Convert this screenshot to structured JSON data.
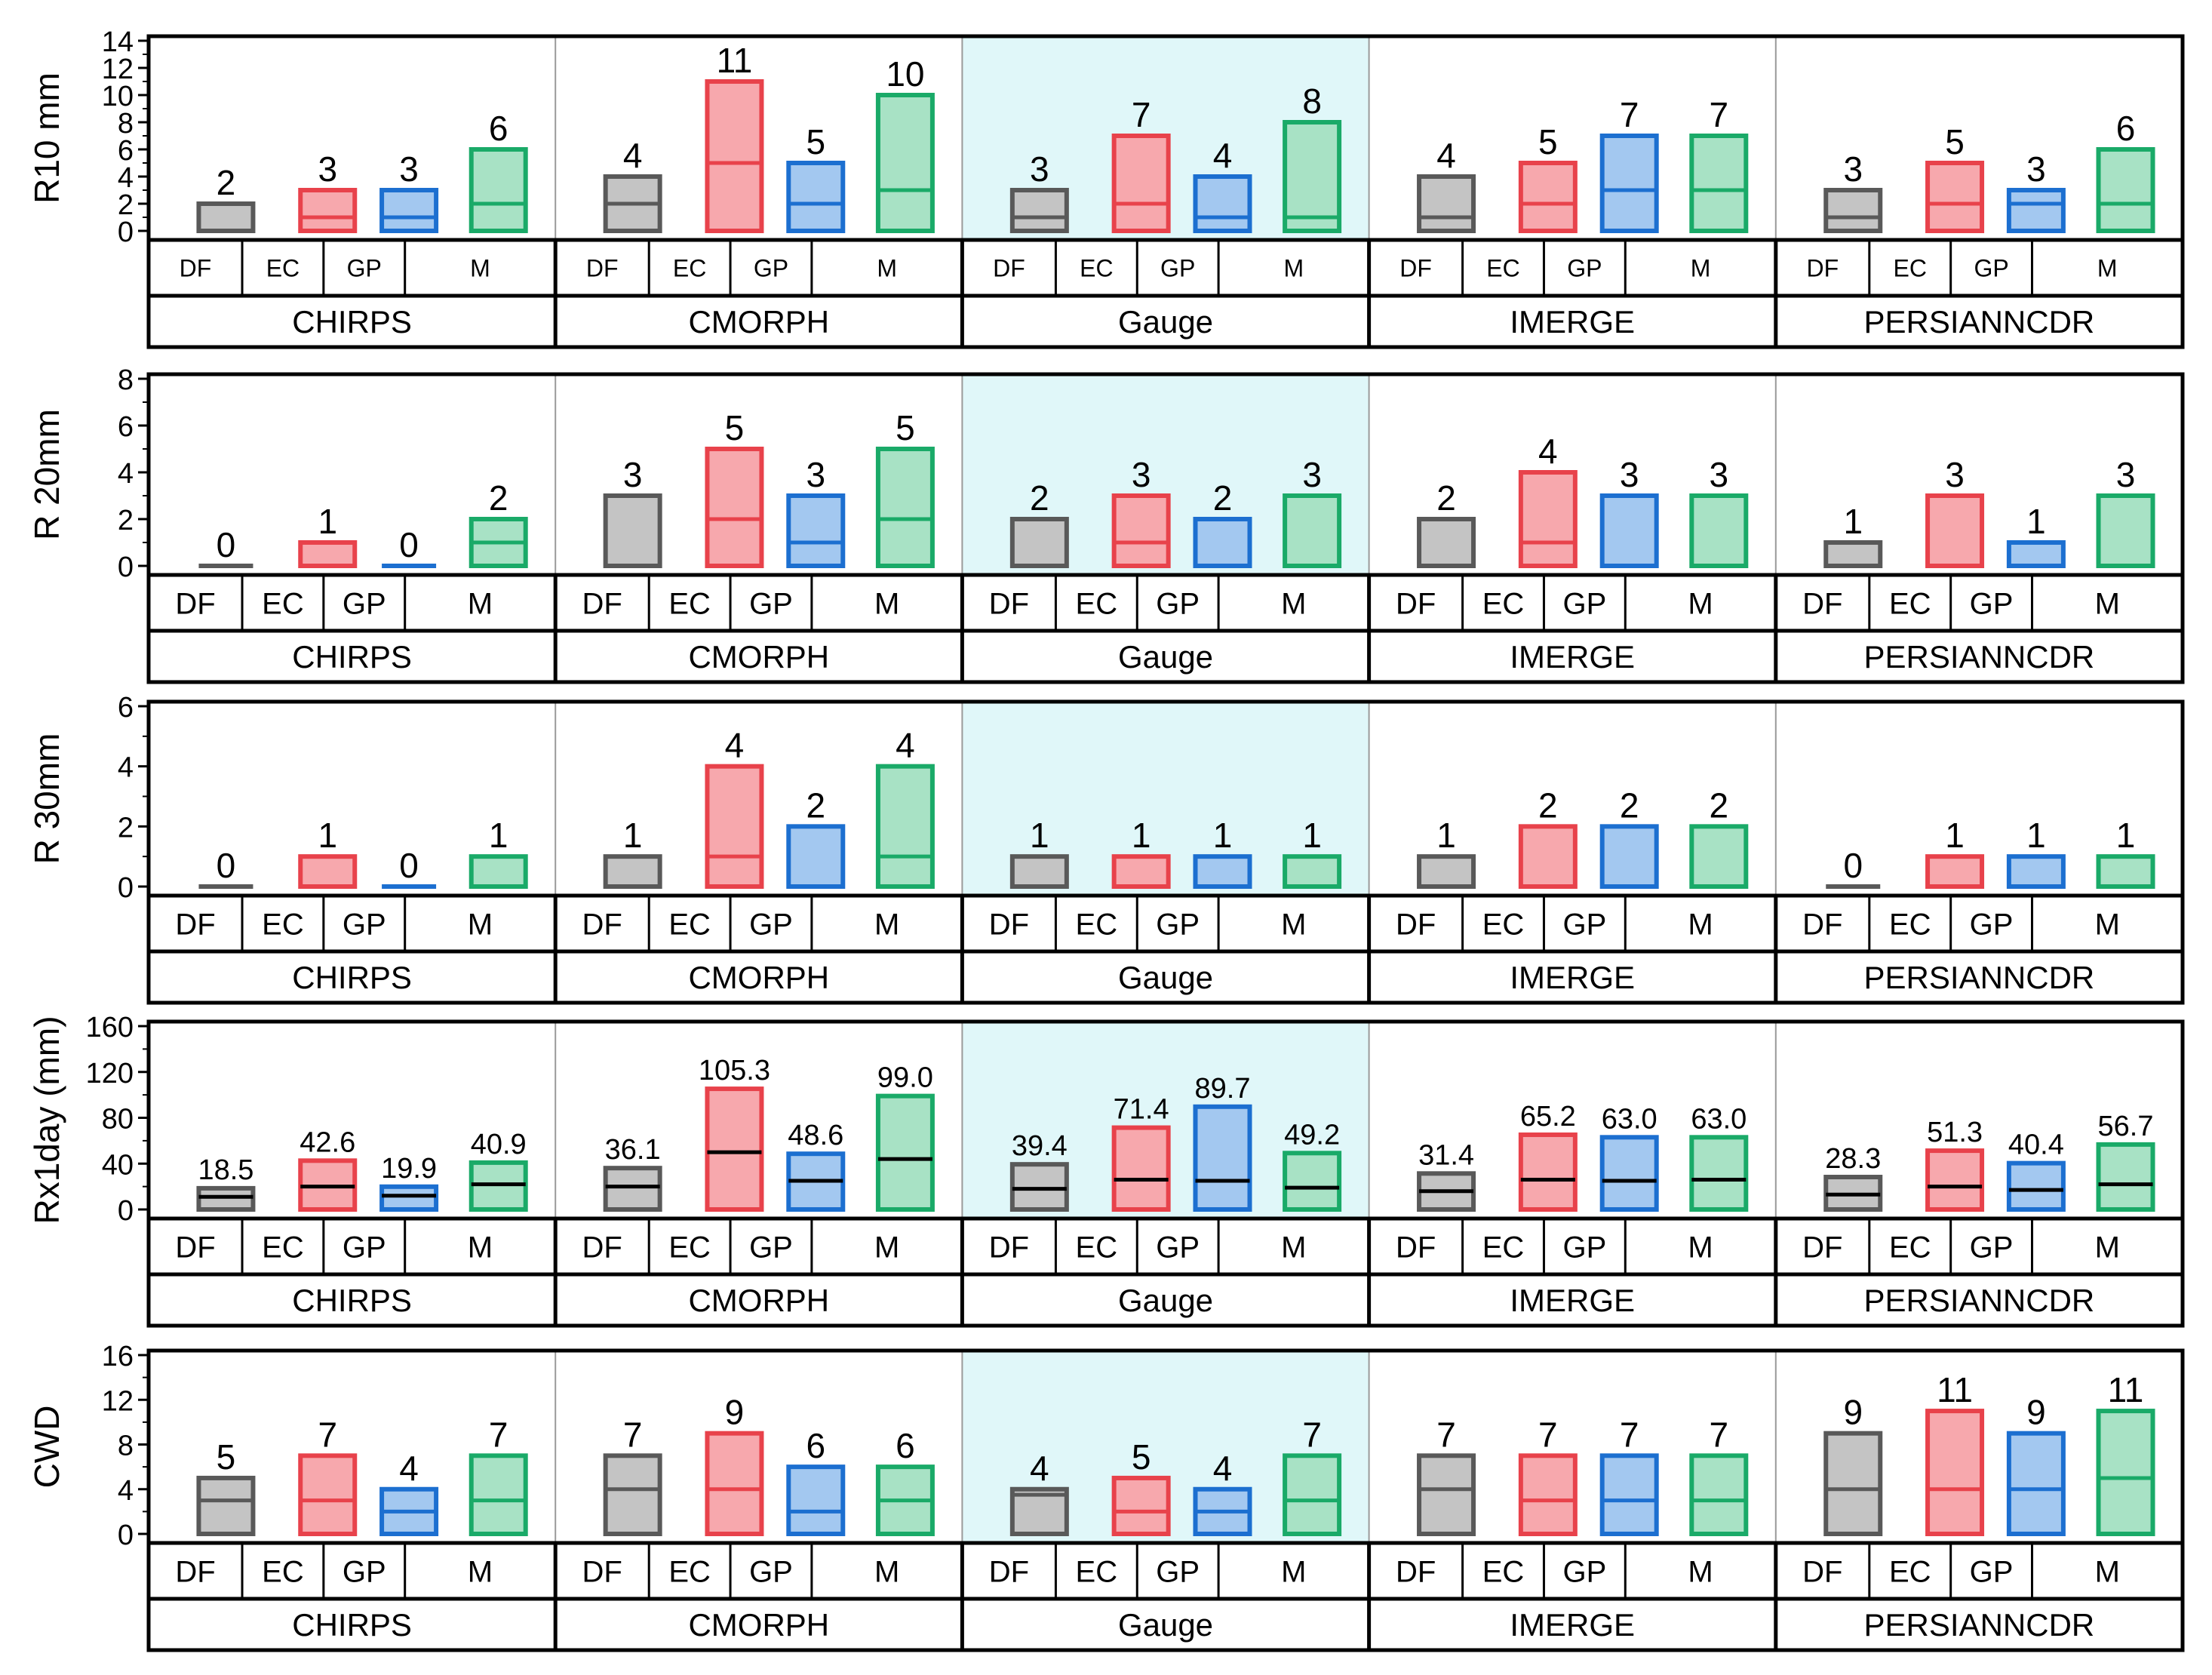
{
  "colors": {
    "DF": {
      "fill": "#c4c4c4",
      "stroke": "#595959"
    },
    "EC": {
      "fill": "#f7a8ad",
      "stroke": "#e8424b"
    },
    "GP": {
      "fill": "#a3c8f0",
      "stroke": "#1c6fd0"
    },
    "M": {
      "fill": "#a8e2c5",
      "stroke": "#1aaa68"
    },
    "gauge_background": "#e0f7f9"
  },
  "chart_data": {
    "type": "bar",
    "chart_kind": "floating bar (range box with median line)",
    "products": [
      "CHIRPS",
      "CMORPH",
      "Gauge",
      "IMERGE",
      "PERSIANNCDR"
    ],
    "methods": [
      "DF",
      "EC",
      "GP",
      "M"
    ],
    "grid": false,
    "legend": "none",
    "panels": [
      {
        "ylabel": "R10 mm",
        "ylim": [
          0,
          14
        ],
        "yticks": [
          "0",
          "2",
          "4",
          "6",
          "8",
          "10",
          "12",
          "14"
        ],
        "groups": [
          {
            "product": "CHIRPS",
            "bars": [
              {
                "method": "DF",
                "label": "2",
                "max": 2,
                "median": 2
              },
              {
                "method": "EC",
                "label": "3",
                "max": 3,
                "median": 1
              },
              {
                "method": "GP",
                "label": "3",
                "max": 3,
                "median": 1
              },
              {
                "method": "M",
                "label": "6",
                "max": 6,
                "median": 2
              }
            ]
          },
          {
            "product": "CMORPH",
            "bars": [
              {
                "method": "DF",
                "label": "4",
                "max": 4,
                "median": 2
              },
              {
                "method": "EC",
                "label": "11",
                "max": 11,
                "median": 5
              },
              {
                "method": "GP",
                "label": "5",
                "max": 5,
                "median": 2
              },
              {
                "method": "M",
                "label": "10",
                "max": 10,
                "median": 3
              }
            ]
          },
          {
            "product": "Gauge",
            "bars": [
              {
                "method": "DF",
                "label": "3",
                "max": 3,
                "median": 1
              },
              {
                "method": "EC",
                "label": "7",
                "max": 7,
                "median": 2
              },
              {
                "method": "GP",
                "label": "4",
                "max": 4,
                "median": 1
              },
              {
                "method": "M",
                "label": "8",
                "max": 8,
                "median": 1
              }
            ]
          },
          {
            "product": "IMERGE",
            "bars": [
              {
                "method": "DF",
                "label": "4",
                "max": 4,
                "median": 1
              },
              {
                "method": "EC",
                "label": "5",
                "max": 5,
                "median": 2
              },
              {
                "method": "GP",
                "label": "7",
                "max": 7,
                "median": 3
              },
              {
                "method": "M",
                "label": "7",
                "max": 7,
                "median": 3
              }
            ]
          },
          {
            "product": "PERSIANNCDR",
            "bars": [
              {
                "method": "DF",
                "label": "3",
                "max": 3,
                "median": 1
              },
              {
                "method": "EC",
                "label": "5",
                "max": 5,
                "median": 2
              },
              {
                "method": "GP",
                "label": "3",
                "max": 3,
                "median": 2
              },
              {
                "method": "M",
                "label": "6",
                "max": 6,
                "median": 2
              }
            ]
          }
        ]
      },
      {
        "ylabel": "R 20mm",
        "ylim": [
          0,
          8
        ],
        "yticks": [
          "0",
          "2",
          "4",
          "6",
          "8"
        ],
        "groups": [
          {
            "product": "CHIRPS",
            "bars": [
              {
                "method": "DF",
                "label": "0",
                "max": 0,
                "median": 0
              },
              {
                "method": "EC",
                "label": "1",
                "max": 1,
                "median": 1
              },
              {
                "method": "GP",
                "label": "0",
                "max": 0,
                "median": 0
              },
              {
                "method": "M",
                "label": "2",
                "max": 2,
                "median": 1
              }
            ]
          },
          {
            "product": "CMORPH",
            "bars": [
              {
                "method": "DF",
                "label": "3",
                "max": 3,
                "median": 3
              },
              {
                "method": "EC",
                "label": "5",
                "max": 5,
                "median": 2
              },
              {
                "method": "GP",
                "label": "3",
                "max": 3,
                "median": 1
              },
              {
                "method": "M",
                "label": "5",
                "max": 5,
                "median": 2
              }
            ]
          },
          {
            "product": "Gauge",
            "bars": [
              {
                "method": "DF",
                "label": "2",
                "max": 2,
                "median": 2
              },
              {
                "method": "EC",
                "label": "3",
                "max": 3,
                "median": 1
              },
              {
                "method": "GP",
                "label": "2",
                "max": 2,
                "median": 2
              },
              {
                "method": "M",
                "label": "3",
                "max": 3,
                "median": 3
              }
            ]
          },
          {
            "product": "IMERGE",
            "bars": [
              {
                "method": "DF",
                "label": "2",
                "max": 2,
                "median": 2
              },
              {
                "method": "EC",
                "label": "4",
                "max": 4,
                "median": 1
              },
              {
                "method": "GP",
                "label": "3",
                "max": 3,
                "median": 3
              },
              {
                "method": "M",
                "label": "3",
                "max": 3,
                "median": 3
              }
            ]
          },
          {
            "product": "PERSIANNCDR",
            "bars": [
              {
                "method": "DF",
                "label": "1",
                "max": 1,
                "median": 1
              },
              {
                "method": "EC",
                "label": "3",
                "max": 3,
                "median": 3
              },
              {
                "method": "GP",
                "label": "1",
                "max": 1,
                "median": 1
              },
              {
                "method": "M",
                "label": "3",
                "max": 3,
                "median": 3
              }
            ]
          }
        ]
      },
      {
        "ylabel": "R 30mm",
        "ylim": [
          0,
          6
        ],
        "yticks": [
          "0",
          "2",
          "4",
          "6"
        ],
        "groups": [
          {
            "product": "CHIRPS",
            "bars": [
              {
                "method": "DF",
                "label": "0",
                "max": 0,
                "median": 0
              },
              {
                "method": "EC",
                "label": "1",
                "max": 1,
                "median": 1
              },
              {
                "method": "GP",
                "label": "0",
                "max": 0,
                "median": 0
              },
              {
                "method": "M",
                "label": "1",
                "max": 1,
                "median": 1
              }
            ]
          },
          {
            "product": "CMORPH",
            "bars": [
              {
                "method": "DF",
                "label": "1",
                "max": 1,
                "median": 1
              },
              {
                "method": "EC",
                "label": "4",
                "max": 4,
                "median": 1
              },
              {
                "method": "GP",
                "label": "2",
                "max": 2,
                "median": 2
              },
              {
                "method": "M",
                "label": "4",
                "max": 4,
                "median": 1
              }
            ]
          },
          {
            "product": "Gauge",
            "bars": [
              {
                "method": "DF",
                "label": "1",
                "max": 1,
                "median": 1
              },
              {
                "method": "EC",
                "label": "1",
                "max": 1,
                "median": 1
              },
              {
                "method": "GP",
                "label": "1",
                "max": 1,
                "median": 1
              },
              {
                "method": "M",
                "label": "1",
                "max": 1,
                "median": 1
              }
            ]
          },
          {
            "product": "IMERGE",
            "bars": [
              {
                "method": "DF",
                "label": "1",
                "max": 1,
                "median": 1
              },
              {
                "method": "EC",
                "label": "2",
                "max": 2,
                "median": 2
              },
              {
                "method": "GP",
                "label": "2",
                "max": 2,
                "median": 2
              },
              {
                "method": "M",
                "label": "2",
                "max": 2,
                "median": 2
              }
            ]
          },
          {
            "product": "PERSIANNCDR",
            "bars": [
              {
                "method": "DF",
                "label": "0",
                "max": 0,
                "median": 0
              },
              {
                "method": "EC",
                "label": "1",
                "max": 1,
                "median": 1
              },
              {
                "method": "GP",
                "label": "1",
                "max": 1,
                "median": 1
              },
              {
                "method": "M",
                "label": "1",
                "max": 1,
                "median": 1
              }
            ]
          }
        ]
      },
      {
        "ylabel": "Rx1day (mm)",
        "ylim": [
          0,
          160
        ],
        "yticks": [
          "0",
          "40",
          "80",
          "120",
          "160"
        ],
        "groups": [
          {
            "product": "CHIRPS",
            "bars": [
              {
                "method": "DF",
                "label": "18.5",
                "max": 18.5,
                "median": 11
              },
              {
                "method": "EC",
                "label": "42.6",
                "max": 42.6,
                "median": 20
              },
              {
                "method": "GP",
                "label": "19.9",
                "max": 19.9,
                "median": 12
              },
              {
                "method": "M",
                "label": "40.9",
                "max": 40.9,
                "median": 22
              }
            ]
          },
          {
            "product": "CMORPH",
            "bars": [
              {
                "method": "DF",
                "label": "36.1",
                "max": 36.1,
                "median": 20
              },
              {
                "method": "EC",
                "label": "105.3",
                "max": 105.3,
                "median": 50
              },
              {
                "method": "GP",
                "label": "48.6",
                "max": 48.6,
                "median": 25
              },
              {
                "method": "M",
                "label": "99.0",
                "max": 99.0,
                "median": 44
              }
            ]
          },
          {
            "product": "Gauge",
            "bars": [
              {
                "method": "DF",
                "label": "39.4",
                "max": 39.4,
                "median": 18
              },
              {
                "method": "EC",
                "label": "71.4",
                "max": 71.4,
                "median": 26
              },
              {
                "method": "GP",
                "label": "89.7",
                "max": 89.7,
                "median": 25
              },
              {
                "method": "M",
                "label": "49.2",
                "max": 49.2,
                "median": 19
              }
            ]
          },
          {
            "product": "IMERGE",
            "bars": [
              {
                "method": "DF",
                "label": "31.4",
                "max": 31.4,
                "median": 16
              },
              {
                "method": "EC",
                "label": "65.2",
                "max": 65.2,
                "median": 26
              },
              {
                "method": "GP",
                "label": "63.0",
                "max": 63.0,
                "median": 25
              },
              {
                "method": "M",
                "label": "63.0",
                "max": 63.0,
                "median": 26
              }
            ]
          },
          {
            "product": "PERSIANNCDR",
            "bars": [
              {
                "method": "DF",
                "label": "28.3",
                "max": 28.3,
                "median": 13
              },
              {
                "method": "EC",
                "label": "51.3",
                "max": 51.3,
                "median": 20
              },
              {
                "method": "GP",
                "label": "40.4",
                "max": 40.4,
                "median": 17
              },
              {
                "method": "M",
                "label": "56.7",
                "max": 56.7,
                "median": 22
              }
            ]
          }
        ]
      },
      {
        "ylabel": "CWD",
        "ylim": [
          0,
          16
        ],
        "yticks": [
          "0",
          "4",
          "8",
          "12",
          "16"
        ],
        "groups": [
          {
            "product": "CHIRPS",
            "bars": [
              {
                "method": "DF",
                "label": "5",
                "max": 5,
                "median": 3
              },
              {
                "method": "EC",
                "label": "7",
                "max": 7,
                "median": 3
              },
              {
                "method": "GP",
                "label": "4",
                "max": 4,
                "median": 2
              },
              {
                "method": "M",
                "label": "7",
                "max": 7,
                "median": 3
              }
            ]
          },
          {
            "product": "CMORPH",
            "bars": [
              {
                "method": "DF",
                "label": "7",
                "max": 7,
                "median": 4
              },
              {
                "method": "EC",
                "label": "9",
                "max": 9,
                "median": 4
              },
              {
                "method": "GP",
                "label": "6",
                "max": 6,
                "median": 2
              },
              {
                "method": "M",
                "label": "6",
                "max": 6,
                "median": 3
              }
            ]
          },
          {
            "product": "Gauge",
            "bars": [
              {
                "method": "DF",
                "label": "4",
                "max": 4,
                "median": 3.5
              },
              {
                "method": "EC",
                "label": "5",
                "max": 5,
                "median": 2
              },
              {
                "method": "GP",
                "label": "4",
                "max": 4,
                "median": 2
              },
              {
                "method": "M",
                "label": "7",
                "max": 7,
                "median": 3
              }
            ]
          },
          {
            "product": "IMERGE",
            "bars": [
              {
                "method": "DF",
                "label": "7",
                "max": 7,
                "median": 4
              },
              {
                "method": "EC",
                "label": "7",
                "max": 7,
                "median": 3
              },
              {
                "method": "GP",
                "label": "7",
                "max": 7,
                "median": 3
              },
              {
                "method": "M",
                "label": "7",
                "max": 7,
                "median": 3
              }
            ]
          },
          {
            "product": "PERSIANNCDR",
            "bars": [
              {
                "method": "DF",
                "label": "9",
                "max": 9,
                "median": 4
              },
              {
                "method": "EC",
                "label": "11",
                "max": 11,
                "median": 4
              },
              {
                "method": "GP",
                "label": "9",
                "max": 9,
                "median": 4
              },
              {
                "method": "M",
                "label": "11",
                "max": 11,
                "median": 5
              }
            ]
          }
        ]
      }
    ]
  }
}
